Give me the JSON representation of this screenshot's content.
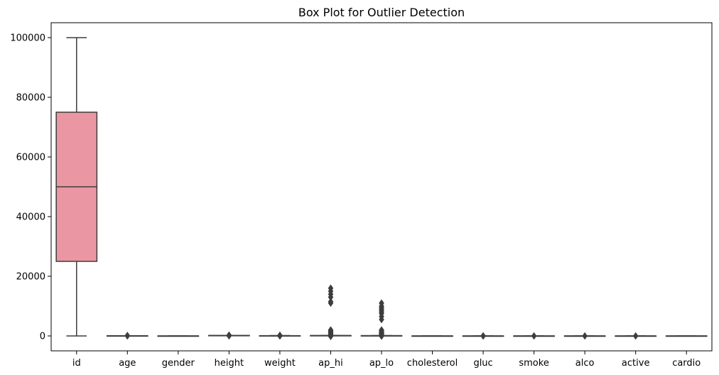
{
  "chart_data": {
    "type": "box",
    "title": "Box Plot for Outlier Detection",
    "xlabel": "",
    "ylabel": "",
    "ylim": [
      -5000,
      105000
    ],
    "yticks": [
      0,
      20000,
      40000,
      60000,
      80000,
      100000
    ],
    "ytick_labels": [
      "0",
      "20000",
      "40000",
      "60000",
      "80000",
      "100000"
    ],
    "grid": false,
    "categories": [
      "id",
      "age",
      "gender",
      "height",
      "weight",
      "ap_hi",
      "ap_lo",
      "cholesterol",
      "gluc",
      "smoke",
      "alco",
      "active",
      "cardio"
    ],
    "boxes": [
      {
        "category": "id",
        "whisker_low": 0,
        "q1": 25000,
        "median": 50000,
        "q3": 75000,
        "whisker_high": 99999,
        "outliers": [],
        "color": "#eb96a3"
      },
      {
        "category": "age",
        "whisker_low": 14,
        "q1": 48,
        "median": 53,
        "q3": 58,
        "whisker_high": 65,
        "outliers": [
          30,
          80,
          100,
          120
        ],
        "color": "#e5a88a"
      },
      {
        "category": "gender",
        "whisker_low": 1,
        "q1": 1,
        "median": 1,
        "q3": 2,
        "whisker_high": 2,
        "outliers": [],
        "color": "#c9b97a"
      },
      {
        "category": "height",
        "whisker_low": 142,
        "q1": 159,
        "median": 165,
        "q3": 170,
        "whisker_high": 186,
        "outliers": [
          55,
          80,
          110,
          200,
          230,
          250
        ],
        "color": "#a8c47a"
      },
      {
        "category": "weight",
        "whisker_low": 40,
        "q1": 65,
        "median": 72,
        "q3": 82,
        "whisker_high": 107,
        "outliers": [
          10,
          20,
          120,
          150,
          180,
          200
        ],
        "color": "#7acb86"
      },
      {
        "category": "ap_hi",
        "whisker_low": 90,
        "q1": 120,
        "median": 120,
        "q3": 140,
        "whisker_high": 170,
        "outliers": [
          -150,
          300,
          500,
          700,
          900,
          1100,
          1300,
          1500,
          1700,
          2000,
          11000,
          11500,
          13000,
          14000,
          15000,
          16000
        ],
        "color": "#7ac9ac"
      },
      {
        "category": "ap_lo",
        "whisker_low": 65,
        "q1": 80,
        "median": 80,
        "q3": 90,
        "whisker_high": 105,
        "outliers": [
          -70,
          0,
          300,
          500,
          700,
          900,
          1000,
          1100,
          1400,
          1700,
          2000,
          5500,
          6500,
          7500,
          8000,
          8500,
          9000,
          9500,
          10000,
          11000
        ],
        "color": "#7ac4c4"
      },
      {
        "category": "cholesterol",
        "whisker_low": 1,
        "q1": 1,
        "median": 1,
        "q3": 2,
        "whisker_high": 3,
        "outliers": [],
        "color": "#7ab8d6"
      },
      {
        "category": "gluc",
        "whisker_low": 1,
        "q1": 1,
        "median": 1,
        "q3": 1,
        "whisker_high": 1,
        "outliers": [
          2,
          3
        ],
        "color": "#96aee6"
      },
      {
        "category": "smoke",
        "whisker_low": 0,
        "q1": 0,
        "median": 0,
        "q3": 0,
        "whisker_high": 0,
        "outliers": [
          1
        ],
        "color": "#bca2e6"
      },
      {
        "category": "alco",
        "whisker_low": 0,
        "q1": 0,
        "median": 0,
        "q3": 0,
        "whisker_high": 0,
        "outliers": [
          1
        ],
        "color": "#d99ade"
      },
      {
        "category": "active",
        "whisker_low": 1,
        "q1": 1,
        "median": 1,
        "q3": 1,
        "whisker_high": 1,
        "outliers": [
          0
        ],
        "color": "#e895c8"
      },
      {
        "category": "cardio",
        "whisker_low": 0,
        "q1": 0,
        "median": 0,
        "q3": 1,
        "whisker_high": 1,
        "outliers": [],
        "color": "#eb96b0"
      }
    ],
    "line_color": "#3d3d3d"
  }
}
